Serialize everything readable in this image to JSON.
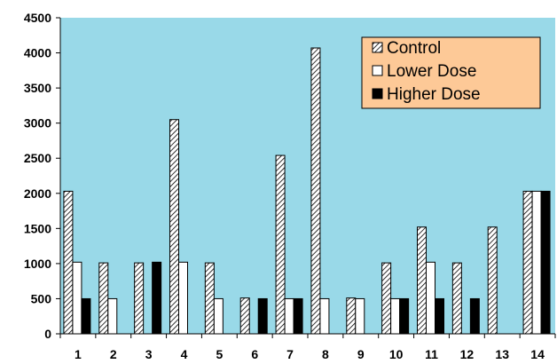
{
  "chart_data": {
    "type": "bar",
    "title": "",
    "xlabel": "",
    "ylabel": "",
    "categories": [
      "1",
      "2",
      "3",
      "4",
      "5",
      "6",
      "7",
      "8",
      "9",
      "10",
      "11",
      "12",
      "13",
      "14"
    ],
    "ylim": [
      0,
      4500
    ],
    "yticks": [
      0,
      500,
      1000,
      1500,
      2000,
      2500,
      3000,
      3500,
      4000,
      4500
    ],
    "grid": false,
    "legend_position": "top-right",
    "series": [
      {
        "name": "Control",
        "pattern": "diagonal-hatch",
        "values": [
          2030,
          1010,
          1010,
          3050,
          1010,
          510,
          2540,
          4070,
          510,
          1010,
          1520,
          1010,
          1520,
          2030
        ]
      },
      {
        "name": "Lower Dose",
        "pattern": "white",
        "values": [
          1020,
          500,
          0,
          1020,
          500,
          0,
          500,
          500,
          500,
          500,
          1020,
          0,
          0,
          2030
        ]
      },
      {
        "name": "Higher Dose",
        "pattern": "black",
        "values": [
          500,
          0,
          1020,
          0,
          0,
          500,
          500,
          0,
          0,
          500,
          500,
          500,
          0,
          2030
        ]
      }
    ],
    "colors": {
      "plot_background": "#99d9e8",
      "legend_background": "#fdc997"
    }
  }
}
